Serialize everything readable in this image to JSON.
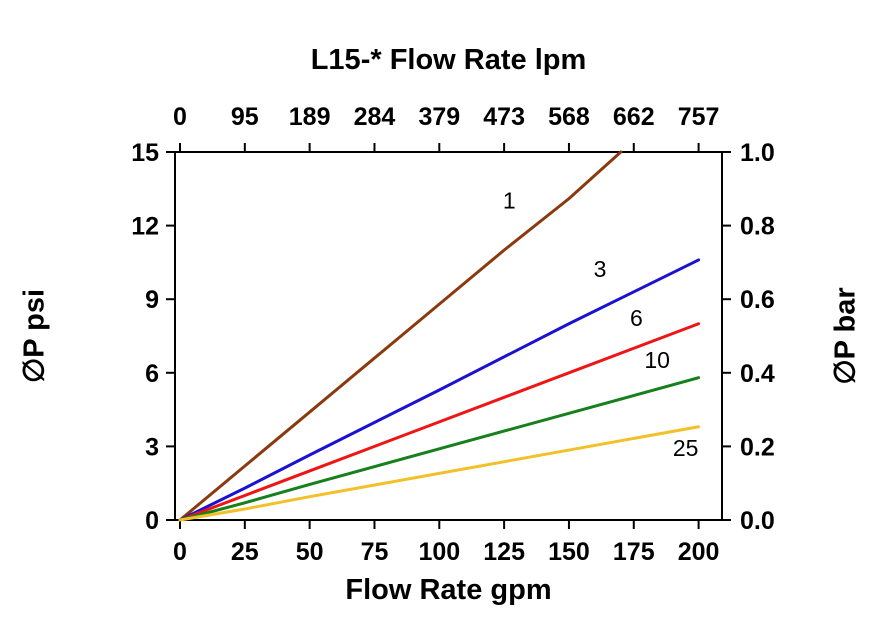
{
  "chart_data": {
    "type": "line",
    "top_axis_title": "L15-* Flow Rate lpm",
    "xlabel": "Flow Rate gpm",
    "ylabel_left": "∅P psi",
    "ylabel_right": "∅P bar",
    "x_bottom_ticks": [
      0,
      25,
      50,
      75,
      100,
      125,
      150,
      175,
      200
    ],
    "x_top_ticks": [
      0,
      95,
      189,
      284,
      379,
      473,
      568,
      662,
      757
    ],
    "y_left_ticks": [
      0,
      3,
      6,
      9,
      12,
      15
    ],
    "y_right_ticks": [
      "0.0",
      "0.2",
      "0.4",
      "0.6",
      "0.8",
      "1.0"
    ],
    "xlim": [
      0,
      200
    ],
    "ylim": [
      0,
      15
    ],
    "grid": false,
    "legend": "inline-curve-labels",
    "series": [
      {
        "label": "1",
        "color": "#8a3a0e",
        "points": [
          [
            0,
            0
          ],
          [
            25,
            2.2
          ],
          [
            50,
            4.4
          ],
          [
            75,
            6.6
          ],
          [
            100,
            8.8
          ],
          [
            125,
            11.0
          ],
          [
            150,
            13.1
          ],
          [
            170,
            15.0
          ]
        ],
        "label_pos": [
          127,
          12.7
        ]
      },
      {
        "label": "3",
        "color": "#1a12d0",
        "points": [
          [
            0,
            0
          ],
          [
            25,
            1.3
          ],
          [
            50,
            2.65
          ],
          [
            100,
            5.3
          ],
          [
            150,
            8.0
          ],
          [
            200,
            10.6
          ]
        ],
        "label_pos": [
          162,
          9.9
        ]
      },
      {
        "label": "6",
        "color": "#ee1515",
        "points": [
          [
            0,
            0
          ],
          [
            25,
            1.0
          ],
          [
            50,
            2.0
          ],
          [
            100,
            4.0
          ],
          [
            150,
            6.0
          ],
          [
            200,
            8.0
          ]
        ],
        "label_pos": [
          176,
          7.9
        ]
      },
      {
        "label": "10",
        "color": "#15801c",
        "points": [
          [
            0,
            0
          ],
          [
            25,
            0.7
          ],
          [
            50,
            1.45
          ],
          [
            100,
            2.9
          ],
          [
            150,
            4.35
          ],
          [
            200,
            5.8
          ]
        ],
        "label_pos": [
          184,
          6.2
        ]
      },
      {
        "label": "25",
        "color": "#f2c029",
        "points": [
          [
            0,
            0
          ],
          [
            25,
            0.45
          ],
          [
            50,
            0.95
          ],
          [
            100,
            1.9
          ],
          [
            150,
            2.85
          ],
          [
            200,
            3.8
          ]
        ],
        "label_pos": [
          195,
          2.6
        ]
      }
    ]
  }
}
